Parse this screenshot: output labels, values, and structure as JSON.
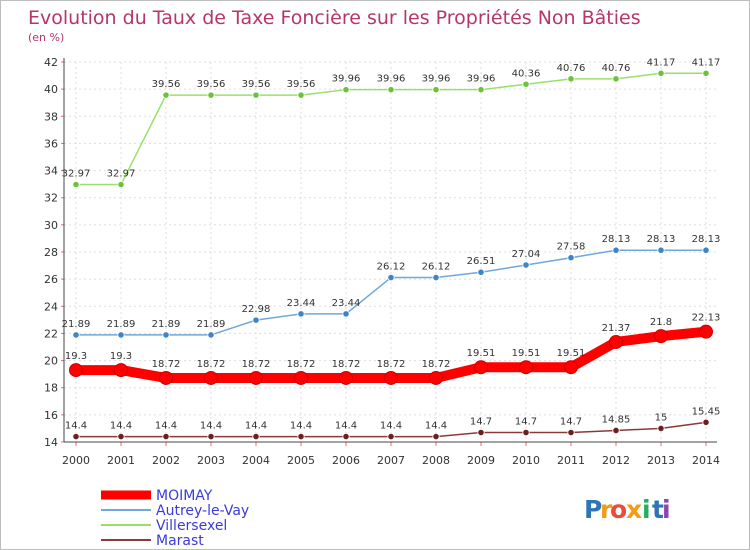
{
  "chart_data": {
    "type": "line",
    "title": "Evolution du Taux de Taxe Foncière sur les Propriétés Non Bâties",
    "ylabel": "(en %)",
    "xlabel": "",
    "ylim": [
      14,
      42
    ],
    "yticks": [
      14,
      16,
      18,
      20,
      22,
      24,
      26,
      28,
      30,
      32,
      34,
      36,
      38,
      40,
      42
    ],
    "x": [
      "2000",
      "2001",
      "2002",
      "2003",
      "2004",
      "2005",
      "2006",
      "2007",
      "2008",
      "2009",
      "2010",
      "2011",
      "2012",
      "2013",
      "2014"
    ],
    "grid": true,
    "series": [
      {
        "name": "MOIMAY",
        "color": "#ff0000",
        "emphasis": true,
        "values": [
          19.3,
          19.3,
          18.72,
          18.72,
          18.72,
          18.72,
          18.72,
          18.72,
          18.72,
          19.51,
          19.51,
          19.51,
          21.37,
          21.8,
          22.13
        ],
        "labels": [
          "19.3",
          "19.3",
          "18.72",
          "18.72",
          "18.72",
          "18.72",
          "18.72",
          "18.72",
          "18.72",
          "19.51",
          "19.51",
          "19.51",
          "21.37",
          "21.8",
          "22.13"
        ]
      },
      {
        "name": "Autrey-le-Vay",
        "color": "#6fa8dc",
        "marker": "#3d85c6",
        "values": [
          21.89,
          21.89,
          21.89,
          21.89,
          22.98,
          23.44,
          23.44,
          26.12,
          26.12,
          26.51,
          27.04,
          27.58,
          28.13,
          28.13,
          28.13
        ],
        "labels": [
          "21.89",
          "21.89",
          "21.89",
          "21.89",
          "22.98",
          "23.44",
          "23.44",
          "26.12",
          "26.12",
          "26.51",
          "27.04",
          "27.58",
          "28.13",
          "28.13",
          "28.13"
        ]
      },
      {
        "name": "Villersexel",
        "color": "#99e06a",
        "marker": "#6cc23a",
        "values": [
          32.97,
          32.97,
          39.56,
          39.56,
          39.56,
          39.56,
          39.96,
          39.96,
          39.96,
          39.96,
          40.36,
          40.76,
          40.76,
          41.17,
          41.17
        ],
        "labels": [
          "32.97",
          "32.97",
          "39.56",
          "39.56",
          "39.56",
          "39.56",
          "39.96",
          "39.96",
          "39.96",
          "39.96",
          "40.36",
          "40.76",
          "40.76",
          "41.17",
          "41.17"
        ]
      },
      {
        "name": "Marast",
        "color": "#8b3a3a",
        "marker": "#6b1f1f",
        "values": [
          14.4,
          14.4,
          14.4,
          14.4,
          14.4,
          14.4,
          14.4,
          14.4,
          14.4,
          14.7,
          14.7,
          14.7,
          14.85,
          15,
          15.45
        ],
        "labels": [
          "14.4",
          "14.4",
          "14.4",
          "14.4",
          "14.4",
          "14.4",
          "14.4",
          "14.4",
          "14.4",
          "14.7",
          "14.7",
          "14.7",
          "14.85",
          "15",
          "15.45"
        ]
      }
    ],
    "legend": "bottom-left"
  },
  "logo": {
    "text": "Proxiti",
    "letters": [
      "P",
      "r",
      "o",
      "x",
      "i",
      "t",
      "i"
    ],
    "colors": [
      "#2e75b6",
      "#f39c12",
      "#e74c3c",
      "#f39c12",
      "#27ae60",
      "#2e75b6",
      "#8e44ad"
    ]
  }
}
